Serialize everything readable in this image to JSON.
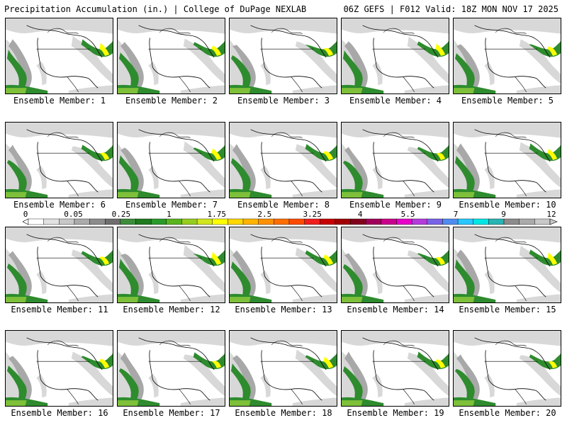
{
  "header": {
    "title_left": "Precipitation Accumulation (in.) | College of DuPage NEXLAB",
    "title_right": "06Z GEFS | F012 Valid: 18Z MON NOV 17 2025"
  },
  "members": [
    {
      "label": "Ensemble Member: 1"
    },
    {
      "label": "Ensemble Member: 2"
    },
    {
      "label": "Ensemble Member: 3"
    },
    {
      "label": "Ensemble Member: 4"
    },
    {
      "label": "Ensemble Member: 5"
    },
    {
      "label": "Ensemble Member: 6"
    },
    {
      "label": "Ensemble Member: 7"
    },
    {
      "label": "Ensemble Member: 8"
    },
    {
      "label": "Ensemble Member: 9"
    },
    {
      "label": "Ensemble Member: 10"
    },
    {
      "label": "Ensemble Member: 11"
    },
    {
      "label": "Ensemble Member: 12"
    },
    {
      "label": "Ensemble Member: 13"
    },
    {
      "label": "Ensemble Member: 14"
    },
    {
      "label": "Ensemble Member: 15"
    },
    {
      "label": "Ensemble Member: 16"
    },
    {
      "label": "Ensemble Member: 17"
    },
    {
      "label": "Ensemble Member: 18"
    },
    {
      "label": "Ensemble Member: 19"
    },
    {
      "label": "Ensemble Member: 20"
    }
  ],
  "colorbar": {
    "labels": [
      "0",
      "0.05",
      "0.25",
      "1",
      "1.75",
      "2.5",
      "3.25",
      "4",
      "5.5",
      "7",
      "9",
      "12"
    ],
    "colors": [
      "#ffffff",
      "#e1e1e1",
      "#c8c8c8",
      "#aaaaaa",
      "#8c8c8c",
      "#6e6e6e",
      "#3c8c3c",
      "#1e7a1e",
      "#2a9a2a",
      "#5ab41e",
      "#96cd1e",
      "#d2e61e",
      "#ffff00",
      "#ffd700",
      "#ffb400",
      "#ff9100",
      "#ff6e00",
      "#ff4b00",
      "#f01e1e",
      "#c80000",
      "#a00000",
      "#82001e",
      "#a0005a",
      "#c8008c",
      "#e600c8",
      "#b43cdc",
      "#7864e6",
      "#508cf0",
      "#28c8ff",
      "#00e6e6",
      "#28b4b4",
      "#8c8c8c",
      "#aaaaaa",
      "#c8c8c8"
    ],
    "precip_colors": {
      "light": "#d8d8d8",
      "mid": "#a8a8a8",
      "green": "#2e8b2e",
      "lime": "#7ec03a",
      "yellow": "#ffff00"
    }
  }
}
